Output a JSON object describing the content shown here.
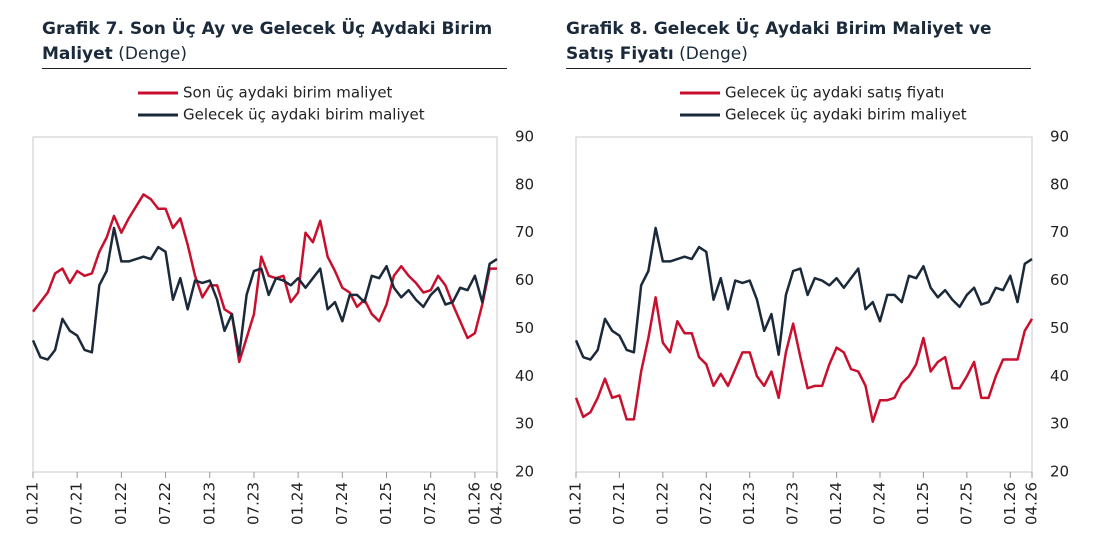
{
  "chart_data": [
    {
      "type": "line",
      "title": "Grafik 7. Son Üç Ay ve Gelecek Üç Aydaki Birim Maliyet",
      "subtitle": "(Denge)",
      "categories": [
        "01.21",
        null,
        null,
        null,
        null,
        null,
        "07.21",
        null,
        null,
        null,
        null,
        null,
        "01.22",
        null,
        null,
        null,
        null,
        null,
        "07.22",
        null,
        null,
        null,
        null,
        null,
        "01.23",
        null,
        null,
        null,
        null,
        null,
        "07.23",
        null,
        null,
        null,
        null,
        null,
        "01.24",
        null,
        null,
        null,
        null,
        null,
        "07.24",
        null,
        null,
        null,
        null,
        null,
        "01.25",
        null,
        null,
        null,
        null,
        null,
        "07.25",
        null,
        null,
        null,
        null,
        null,
        "01.26",
        null,
        null,
        "04.26"
      ],
      "series": [
        {
          "name": "Son üç aydaki birim maliyet",
          "color": "#c8102e",
          "values": [
            53.5,
            55.5,
            57.5,
            61.5,
            62.5,
            59.5,
            62,
            61,
            61.5,
            66,
            69,
            73.5,
            70,
            73,
            75.5,
            78,
            77,
            75,
            75,
            71,
            73,
            67.5,
            61,
            56.5,
            59,
            59,
            54,
            53,
            43,
            48,
            53,
            65,
            61,
            60.5,
            61,
            55.5,
            57.5,
            70,
            68,
            72.5,
            65,
            62,
            58.5,
            57.5,
            54.5,
            56,
            53,
            51.5,
            55,
            61,
            63,
            61,
            59.5,
            57.5,
            58,
            61,
            59,
            55,
            51.5,
            48,
            49,
            55,
            62.5,
            62.5
          ]
        },
        {
          "name": "Gelecek üç aydaki birim maliyet",
          "color": "#1b2a3a",
          "values": [
            47.5,
            44,
            43.5,
            45.5,
            52,
            49.5,
            48.5,
            45.5,
            45,
            59,
            62,
            71,
            64,
            64,
            64.5,
            65,
            64.5,
            67,
            66,
            56,
            60.5,
            54,
            60,
            59.5,
            60,
            56,
            49.5,
            53,
            44.5,
            57,
            62,
            62.5,
            57,
            60.5,
            60,
            59,
            60.5,
            58.5,
            60.5,
            62.5,
            54,
            55.5,
            51.5,
            57,
            57,
            55.5,
            61,
            60.5,
            63,
            58.5,
            56.5,
            58,
            56,
            54.5,
            57,
            58.5,
            55,
            55.5,
            58.5,
            58,
            61,
            55.5,
            63.5,
            64.5
          ]
        }
      ],
      "ylim": [
        20,
        90
      ],
      "yticks": [
        20,
        30,
        40,
        50,
        60,
        70,
        80,
        90
      ],
      "grid": false
    },
    {
      "type": "line",
      "title": "Grafik 8. Gelecek Üç Aydaki Birim Maliyet ve Satış Fiyatı",
      "subtitle": "(Denge)",
      "categories": [
        "01.21",
        null,
        null,
        null,
        null,
        null,
        "07.21",
        null,
        null,
        null,
        null,
        null,
        "01.22",
        null,
        null,
        null,
        null,
        null,
        "07.22",
        null,
        null,
        null,
        null,
        null,
        "01.23",
        null,
        null,
        null,
        null,
        null,
        "07.23",
        null,
        null,
        null,
        null,
        null,
        "01.24",
        null,
        null,
        null,
        null,
        null,
        "07.24",
        null,
        null,
        null,
        null,
        null,
        "01.25",
        null,
        null,
        null,
        null,
        null,
        "07.25",
        null,
        null,
        null,
        null,
        null,
        "01.26",
        null,
        null,
        "04.26"
      ],
      "series": [
        {
          "name": "Gelecek üç aydaki satış fiyatı",
          "color": "#c8102e",
          "values": [
            35.5,
            31.5,
            32.5,
            35.5,
            39.5,
            35.5,
            36,
            31,
            31,
            41,
            48,
            56.5,
            47,
            45,
            51.5,
            49,
            49,
            44,
            42.5,
            38,
            40.5,
            38,
            41.5,
            45,
            45,
            40,
            38,
            41,
            35.5,
            45,
            51,
            44,
            37.5,
            38,
            38,
            42.5,
            46,
            45,
            41.5,
            41,
            38,
            30.5,
            35,
            35,
            35.5,
            38.5,
            40,
            42.5,
            48,
            41,
            43,
            44,
            37.5,
            37.5,
            40,
            43,
            35.5,
            35.5,
            40,
            43.5,
            43.5,
            43.5,
            49.5,
            52
          ]
        },
        {
          "name": "Gelecek üç aydaki birim maliyet",
          "color": "#1b2a3a",
          "values": [
            47.5,
            44,
            43.5,
            45.5,
            52,
            49.5,
            48.5,
            45.5,
            45,
            59,
            62,
            71,
            64,
            64,
            64.5,
            65,
            64.5,
            67,
            66,
            56,
            60.5,
            54,
            60,
            59.5,
            60,
            56,
            49.5,
            53,
            44.5,
            57,
            62,
            62.5,
            57,
            60.5,
            60,
            59,
            60.5,
            58.5,
            60.5,
            62.5,
            54,
            55.5,
            51.5,
            57,
            57,
            55.5,
            61,
            60.5,
            63,
            58.5,
            56.5,
            58,
            56,
            54.5,
            57,
            58.5,
            55,
            55.5,
            58.5,
            58,
            61,
            55.5,
            63.5,
            64.5
          ]
        }
      ],
      "ylim": [
        20,
        90
      ],
      "yticks": [
        20,
        30,
        40,
        50,
        60,
        70,
        80,
        90
      ],
      "grid": false
    }
  ]
}
